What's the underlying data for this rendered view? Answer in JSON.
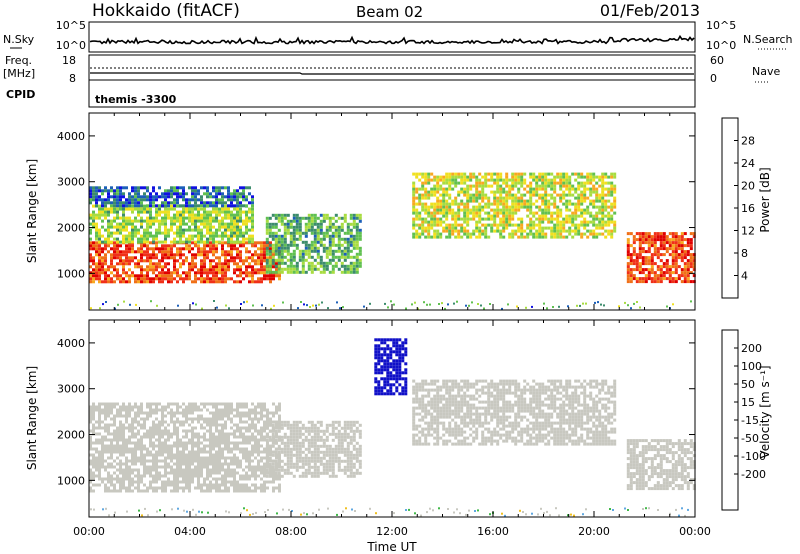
{
  "header": {
    "station": "Hokkaido (fitACF)",
    "beam": "Beam 02",
    "date": "01/Feb/2013"
  },
  "nsky_panel": {
    "left_label": "N.Sky",
    "right_label": "N.Search",
    "left_ticks": [
      "10^5",
      "10^0"
    ],
    "right_ticks": [
      "10^5",
      "10^0"
    ]
  },
  "freq_panel": {
    "left_label_line1": "Freq.",
    "left_label_line2": "[MHz]",
    "right_label": "Nave",
    "left_ticks": [
      "18",
      "8"
    ],
    "right_ticks": [
      "60",
      "0"
    ]
  },
  "cpid_panel": {
    "label": "CPID",
    "text": "themis -3300"
  },
  "colors": {
    "power_scale": [
      "#1010e0",
      "#1c5fb8",
      "#3c8c6c",
      "#60c050",
      "#a8dc40",
      "#f0e020",
      "#f8a820",
      "#f07018",
      "#f03018",
      "#e00000"
    ],
    "velocity_scale": [
      "#1010c8",
      "#2850d8",
      "#60a8e0",
      "#40b848",
      "#c8c8c0",
      "#c8c8c0",
      "#f0c020",
      "#f08818",
      "#f04818",
      "#e00000"
    ],
    "ground_scatter": "#c8c8c4"
  },
  "chart_data": [
    {
      "type": "heatmap",
      "name": "power",
      "xlabel": "",
      "ylabel": "Slant Range [km]",
      "x_range": [
        "00:00",
        "24:00"
      ],
      "ylim": [
        200,
        4500
      ],
      "yticks": [
        1000,
        2000,
        3000,
        4000
      ],
      "colorbar": {
        "label": "Power [dB]",
        "ticks": [
          4,
          8,
          12,
          16,
          20,
          24,
          28
        ],
        "range": [
          0,
          32
        ]
      },
      "regions": [
        {
          "t": [
            0.0,
            7.6
          ],
          "r": [
            800,
            1700
          ],
          "value": 26
        },
        {
          "t": [
            0.0,
            6.5
          ],
          "r": [
            1700,
            2500
          ],
          "value": 14
        },
        {
          "t": [
            0.0,
            6.5
          ],
          "r": [
            2500,
            2900
          ],
          "value": 6
        },
        {
          "t": [
            7.0,
            10.8
          ],
          "r": [
            1000,
            2300
          ],
          "value": 11
        },
        {
          "t": [
            12.8,
            20.8
          ],
          "r": [
            1800,
            3200
          ],
          "value": 16
        },
        {
          "t": [
            21.3,
            24.0
          ],
          "r": [
            800,
            1900
          ],
          "value": 26
        }
      ]
    },
    {
      "type": "heatmap",
      "name": "velocity",
      "xlabel": "Time UT",
      "ylabel": "Slant Range [km]",
      "x_range": [
        "00:00",
        "24:00"
      ],
      "xticks": [
        "00:00",
        "04:00",
        "08:00",
        "12:00",
        "16:00",
        "20:00",
        "00:00"
      ],
      "ylim": [
        200,
        4500
      ],
      "yticks": [
        1000,
        2000,
        3000,
        4000
      ],
      "colorbar": {
        "label": "Velocity [m s⁻¹]",
        "ticks": [
          200,
          100,
          50,
          15,
          -15,
          -50,
          -100,
          -200
        ]
      },
      "regions": [
        {
          "t": [
            0.0,
            7.6
          ],
          "r": [
            800,
            2700
          ],
          "value": 0
        },
        {
          "t": [
            7.0,
            10.8
          ],
          "r": [
            1100,
            2300
          ],
          "value": 0
        },
        {
          "t": [
            11.3,
            12.6
          ],
          "r": [
            2900,
            4100
          ],
          "value": 180
        },
        {
          "t": [
            12.8,
            20.8
          ],
          "r": [
            1800,
            3200
          ],
          "value": 0
        },
        {
          "t": [
            21.3,
            24.0
          ],
          "r": [
            800,
            1900
          ],
          "value": 0
        }
      ]
    }
  ]
}
